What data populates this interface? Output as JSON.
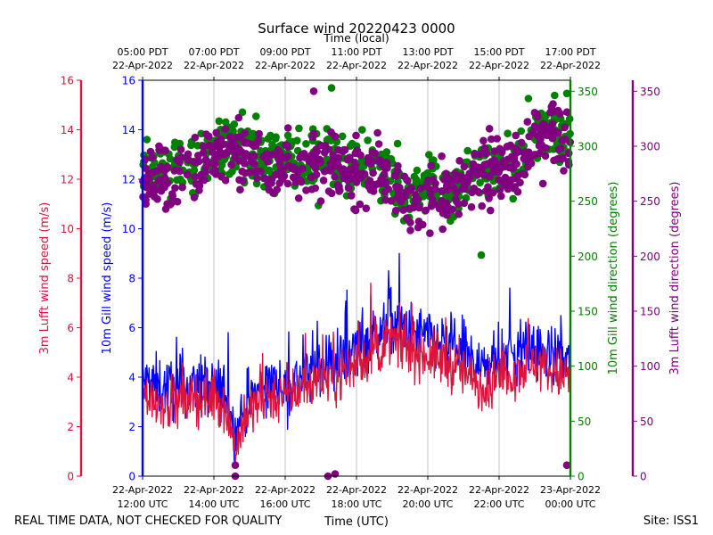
{
  "chart_data": {
    "type": "line+scatter",
    "title": "Surface wind 20220423 0000",
    "top_axis_label": "Time (local)",
    "xlabel": "Time (UTC)",
    "footer_left": "REAL TIME DATA, NOT CHECKED FOR QUALITY",
    "footer_right": "Site: ISS1",
    "x_range_hours": [
      0,
      12
    ],
    "bottom_ticks": [
      {
        "hour": 0,
        "line1": "22-Apr-2022",
        "line2": "12:00 UTC"
      },
      {
        "hour": 2,
        "line1": "22-Apr-2022",
        "line2": "14:00 UTC"
      },
      {
        "hour": 4,
        "line1": "22-Apr-2022",
        "line2": "16:00 UTC"
      },
      {
        "hour": 6,
        "line1": "22-Apr-2022",
        "line2": "18:00 UTC"
      },
      {
        "hour": 8,
        "line1": "22-Apr-2022",
        "line2": "20:00 UTC"
      },
      {
        "hour": 10,
        "line1": "22-Apr-2022",
        "line2": "22:00 UTC"
      },
      {
        "hour": 12,
        "line1": "23-Apr-2022",
        "line2": "00:00 UTC"
      }
    ],
    "top_ticks": [
      {
        "hour": 0,
        "line1": "05:00 PDT",
        "line2": "22-Apr-2022"
      },
      {
        "hour": 2,
        "line1": "07:00 PDT",
        "line2": "22-Apr-2022"
      },
      {
        "hour": 4,
        "line1": "09:00 PDT",
        "line2": "22-Apr-2022"
      },
      {
        "hour": 6,
        "line1": "11:00 PDT",
        "line2": "22-Apr-2022"
      },
      {
        "hour": 8,
        "line1": "13:00 PDT",
        "line2": "22-Apr-2022"
      },
      {
        "hour": 10,
        "line1": "15:00 PDT",
        "line2": "22-Apr-2022"
      },
      {
        "hour": 12,
        "line1": "17:00 PDT",
        "line2": "22-Apr-2022"
      }
    ],
    "axes": {
      "lufft_speed": {
        "label": "3m Lufft wind speed (m/s)",
        "color": "#dc143c",
        "range": [
          0,
          16
        ],
        "ticks": [
          0,
          2,
          4,
          6,
          8,
          10,
          12,
          14,
          16
        ]
      },
      "gill_speed": {
        "label": "10m Gill wind speed (m/s)",
        "color": "#0000ff",
        "range": [
          0,
          16
        ],
        "ticks": [
          0,
          2,
          4,
          6,
          8,
          10,
          12,
          14,
          16
        ]
      },
      "gill_dir": {
        "label": "10m Gill wind direction (degrees)",
        "color": "#008000",
        "range": [
          0,
          360
        ],
        "ticks": [
          0,
          50,
          100,
          150,
          200,
          250,
          300,
          350
        ]
      },
      "lufft_dir": {
        "label": "3m Lufft wind direction (degrees)",
        "color": "#800080",
        "range": [
          0,
          360
        ],
        "ticks": [
          0,
          50,
          100,
          150,
          200,
          250,
          300,
          350
        ]
      }
    },
    "series": [
      {
        "name": "10m Gill wind speed",
        "kind": "line",
        "axis": "gill_speed",
        "color": "#0000ff",
        "trend": [
          [
            0,
            3.8
          ],
          [
            0.5,
            3.6
          ],
          [
            1,
            3.5
          ],
          [
            1.5,
            3.7
          ],
          [
            2,
            3.6
          ],
          [
            2.3,
            3.4
          ],
          [
            2.6,
            1.8
          ],
          [
            2.8,
            2.4
          ],
          [
            3,
            3.0
          ],
          [
            3.5,
            3.8
          ],
          [
            4,
            3.6
          ],
          [
            4.5,
            4.0
          ],
          [
            5,
            4.5
          ],
          [
            5.5,
            4.6
          ],
          [
            6,
            5.2
          ],
          [
            6.5,
            5.6
          ],
          [
            7,
            6.2
          ],
          [
            7.5,
            5.8
          ],
          [
            8,
            5.6
          ],
          [
            8.5,
            5.3
          ],
          [
            9,
            5.0
          ],
          [
            9.5,
            4.4
          ],
          [
            10,
            4.6
          ],
          [
            10.5,
            5.0
          ],
          [
            11,
            5.2
          ],
          [
            11.5,
            4.8
          ],
          [
            12,
            4.6
          ]
        ],
        "noise": 1.1,
        "peaks": [
          [
            2.4,
            5.8
          ],
          [
            6.4,
            7.3
          ],
          [
            7.2,
            9.0
          ],
          [
            6.9,
            8.3
          ],
          [
            10.3,
            7.6
          ],
          [
            12.0,
            7.6
          ]
        ]
      },
      {
        "name": "3m Lufft wind speed",
        "kind": "line",
        "axis": "lufft_speed",
        "color": "#dc143c",
        "trend": [
          [
            0,
            3.3
          ],
          [
            0.5,
            3.0
          ],
          [
            1,
            2.9
          ],
          [
            1.5,
            3.1
          ],
          [
            2,
            3.2
          ],
          [
            2.3,
            2.9
          ],
          [
            2.6,
            1.2
          ],
          [
            2.8,
            1.9
          ],
          [
            3,
            2.6
          ],
          [
            3.5,
            3.3
          ],
          [
            4,
            3.2
          ],
          [
            4.5,
            3.6
          ],
          [
            5,
            4.0
          ],
          [
            5.5,
            4.1
          ],
          [
            6,
            4.6
          ],
          [
            6.5,
            5.0
          ],
          [
            7,
            5.5
          ],
          [
            7.5,
            5.1
          ],
          [
            8,
            4.9
          ],
          [
            8.5,
            4.6
          ],
          [
            9,
            4.2
          ],
          [
            9.5,
            3.6
          ],
          [
            10,
            3.9
          ],
          [
            10.5,
            4.3
          ],
          [
            11,
            4.6
          ],
          [
            11.5,
            4.2
          ],
          [
            12,
            4.0
          ]
        ],
        "noise": 0.95,
        "peaks": [
          [
            6.4,
            7.8
          ],
          [
            7.2,
            7.0
          ],
          [
            8.5,
            6.4
          ],
          [
            12.0,
            6.4
          ]
        ]
      },
      {
        "name": "10m Gill wind direction",
        "kind": "scatter",
        "axis": "gill_dir",
        "color": "#008000",
        "trend": [
          [
            0,
            275
          ],
          [
            0.5,
            272
          ],
          [
            1,
            280
          ],
          [
            1.5,
            285
          ],
          [
            2,
            295
          ],
          [
            2.5,
            300
          ],
          [
            3,
            292
          ],
          [
            3.5,
            283
          ],
          [
            4,
            290
          ],
          [
            4.5,
            283
          ],
          [
            5,
            290
          ],
          [
            5.5,
            286
          ],
          [
            6,
            278
          ],
          [
            6.5,
            282
          ],
          [
            7,
            270
          ],
          [
            7.5,
            255
          ],
          [
            8,
            268
          ],
          [
            8.5,
            258
          ],
          [
            9,
            270
          ],
          [
            9.5,
            285
          ],
          [
            10,
            280
          ],
          [
            10.5,
            290
          ],
          [
            11,
            310
          ],
          [
            11.5,
            318
          ],
          [
            12,
            305
          ]
        ],
        "spread": 30,
        "outliers": [
          [
            5.3,
            353
          ],
          [
            9.5,
            201
          ],
          [
            11.9,
            348
          ],
          [
            2.8,
            331
          ]
        ]
      },
      {
        "name": "3m Lufft wind direction",
        "kind": "scatter",
        "axis": "lufft_dir",
        "color": "#800080",
        "trend": [
          [
            0,
            270
          ],
          [
            0.5,
            268
          ],
          [
            1,
            272
          ],
          [
            1.5,
            280
          ],
          [
            2,
            290
          ],
          [
            2.5,
            300
          ],
          [
            3,
            288
          ],
          [
            3.5,
            278
          ],
          [
            4,
            285
          ],
          [
            4.5,
            280
          ],
          [
            5,
            285
          ],
          [
            5.5,
            280
          ],
          [
            6,
            275
          ],
          [
            6.5,
            278
          ],
          [
            7,
            265
          ],
          [
            7.5,
            250
          ],
          [
            8,
            262
          ],
          [
            8.5,
            255
          ],
          [
            9,
            268
          ],
          [
            9.5,
            280
          ],
          [
            10,
            275
          ],
          [
            10.5,
            285
          ],
          [
            11,
            305
          ],
          [
            11.5,
            315
          ],
          [
            12,
            300
          ]
        ],
        "spread": 32,
        "outliers": [
          [
            2.6,
            10
          ],
          [
            2.6,
            0
          ],
          [
            5.2,
            0
          ],
          [
            5.4,
            2
          ],
          [
            4.8,
            350
          ],
          [
            11.9,
            10
          ]
        ]
      }
    ]
  }
}
